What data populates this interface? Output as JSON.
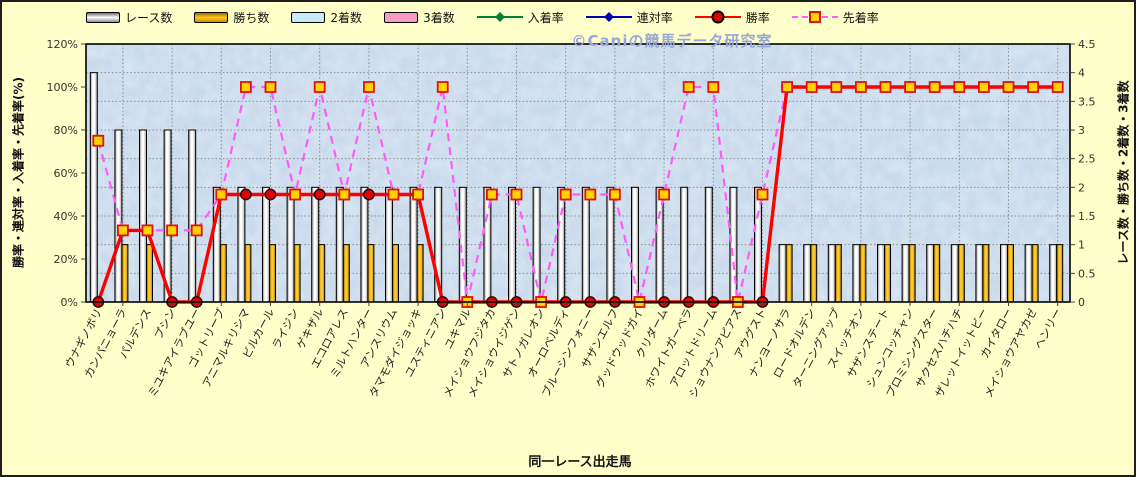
{
  "watermark": "©Caniの競馬データ研究室",
  "colors": {
    "canvas_bg": "#FFFFC9",
    "plot_bg": "#C9DAEC",
    "grid": "#8C8C8C",
    "bar_race_fill": "#FFFFFF",
    "bar_race_edge": "#8D8D8D",
    "bar_win_fill": "#FFC61E",
    "bar_second_fill": "#C9EAF7",
    "bar_third_fill": "#F79BC0",
    "line_place_rate": "#008033",
    "line_quinella_rate": "#0000B3",
    "line_win_rate": "#FF0000",
    "line_finish_ahead": "#FF5AFF",
    "marker_square_fill": "#FFD400",
    "marker_square_edge": "#E11111",
    "watermark_text": "#98A7DB"
  },
  "chart_data": {
    "type": "combo-bar-line",
    "x_title": "同一レース出走馬",
    "grid": true,
    "legend_position": "top",
    "categories": [
      "ウナギノボリ",
      "カンパニョーラ",
      "パルデンス",
      "プシン",
      "ミユキアイラブユー",
      "ゴットリーブ",
      "アニマルキリシマ",
      "ビルカール",
      "ライジン",
      "ゲキザル",
      "エコロアレス",
      "ミルトハンター",
      "アンスリウム",
      "タマモダイジョッキ",
      "ユスティニアン",
      "ユキマル",
      "メイショウフジタカ",
      "メイショウイジゲン",
      "サトノガレオン",
      "オーロベルディ",
      "ブルーシンフォニー",
      "サザンエルフ",
      "グッドウッドガイ",
      "クリダーム",
      "ホワイトガーベラ",
      "アロットドリーム",
      "ショウナンアピアス",
      "アウグスト",
      "ナンヨーノサラ",
      "ロードオルデン",
      "ターニングアップ",
      "スイッチオン",
      "サザンステート",
      "シュンコッチャン",
      "プロミシングスター",
      "サクセスハチハチ",
      "ザレットイットビー",
      "カイタロー",
      "メイショウアヤカゼ",
      "ヘンリー"
    ],
    "left_axis": {
      "title": "勝率・連対率・入着率・先着率(%)",
      "min": 0,
      "max": 120,
      "step": 20,
      "ticks": [
        "0%",
        "20%",
        "40%",
        "60%",
        "80%",
        "100%",
        "120%"
      ]
    },
    "right_axis": {
      "title": "レース数・勝ち数・2着数・3着数",
      "min": 0,
      "max": 4.5,
      "step": 0.5,
      "ticks": [
        "0",
        "0.5",
        "1",
        "1.5",
        "2",
        "2.5",
        "3",
        "3.5",
        "4",
        "4.5"
      ]
    },
    "series": [
      {
        "name": "レース数",
        "kind": "bar",
        "axis": "right",
        "swatch": "bar-3d-white",
        "values": [
          4,
          3,
          3,
          3,
          3,
          2,
          2,
          2,
          2,
          2,
          2,
          2,
          2,
          2,
          2,
          2,
          2,
          2,
          2,
          2,
          2,
          2,
          2,
          2,
          2,
          2,
          2,
          2,
          1,
          1,
          1,
          1,
          1,
          1,
          1,
          1,
          1,
          1,
          1,
          1
        ]
      },
      {
        "name": "勝ち数",
        "kind": "bar",
        "axis": "right",
        "swatch": "bar-3d-gold",
        "values": [
          0,
          1,
          1,
          0,
          0,
          1,
          1,
          1,
          1,
          1,
          1,
          1,
          1,
          1,
          0,
          0,
          0,
          0,
          0,
          0,
          0,
          0,
          0,
          0,
          0,
          0,
          0,
          0,
          1,
          1,
          1,
          1,
          1,
          1,
          1,
          1,
          1,
          1,
          1,
          1
        ]
      },
      {
        "name": "2着数",
        "kind": "bar",
        "axis": "right",
        "swatch": "bar-flat-lightblue",
        "values": [
          0,
          0,
          0,
          0,
          0,
          0,
          0,
          0,
          0,
          0,
          0,
          0,
          0,
          0,
          0,
          0,
          0,
          0,
          0,
          0,
          0,
          0,
          0,
          0,
          0,
          0,
          0,
          0,
          0,
          0,
          0,
          0,
          0,
          0,
          0,
          0,
          0,
          0,
          0,
          0
        ]
      },
      {
        "name": "3着数",
        "kind": "bar",
        "axis": "right",
        "swatch": "bar-flat-pink",
        "values": [
          0,
          0,
          0,
          0,
          0,
          0,
          0,
          0,
          0,
          0,
          0,
          0,
          0,
          0,
          0,
          0,
          0,
          0,
          0,
          0,
          0,
          0,
          0,
          0,
          0,
          0,
          0,
          0,
          0,
          0,
          0,
          0,
          0,
          0,
          0,
          0,
          0,
          0,
          0,
          0
        ]
      },
      {
        "name": "入着率",
        "kind": "line",
        "axis": "left",
        "swatch": "line-diamond-green",
        "plotted": false,
        "values": null
      },
      {
        "name": "連対率",
        "kind": "line",
        "axis": "left",
        "swatch": "line-diamond-blue",
        "plotted": false,
        "values": null
      },
      {
        "name": "勝率",
        "kind": "line",
        "axis": "left",
        "swatch": "line-circle-red",
        "values": [
          0,
          33.3,
          33.3,
          0,
          0,
          50,
          50,
          50,
          50,
          50,
          50,
          50,
          50,
          50,
          0,
          0,
          0,
          0,
          0,
          0,
          0,
          0,
          0,
          0,
          0,
          0,
          0,
          0,
          100,
          100,
          100,
          100,
          100,
          100,
          100,
          100,
          100,
          100,
          100,
          100
        ]
      },
      {
        "name": "先着率",
        "kind": "dashed-line",
        "axis": "left",
        "swatch": "dash-square-magenta",
        "values": [
          75,
          33.3,
          33.3,
          33.3,
          33.3,
          50,
          100,
          100,
          50,
          100,
          50,
          100,
          50,
          50,
          100,
          0,
          50,
          50,
          0,
          50,
          50,
          50,
          0,
          50,
          100,
          100,
          0,
          50,
          100,
          100,
          100,
          100,
          100,
          100,
          100,
          100,
          100,
          100,
          100,
          100
        ]
      }
    ]
  }
}
